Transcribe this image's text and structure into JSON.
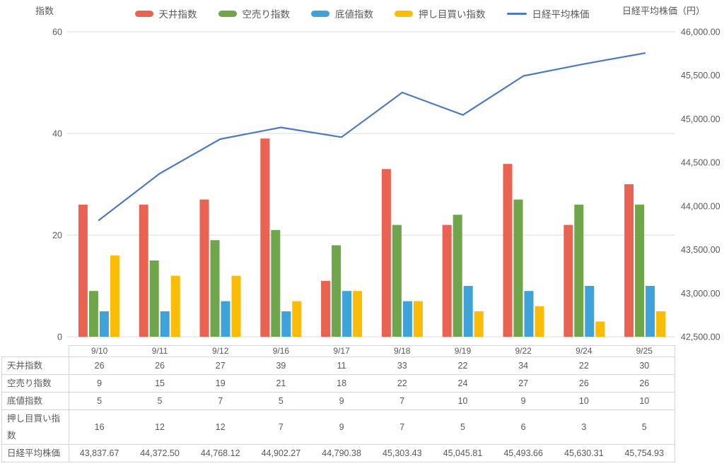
{
  "page": {
    "left_axis_title": "指数",
    "right_axis_title": "日経平均株価（円）"
  },
  "colors": {
    "ceiling": "#EA6352",
    "short_sell": "#70A64B",
    "bottom": "#3FA2D9",
    "dip_buy": "#FBBC05",
    "nikkei_line": "#4E79BD",
    "grid": "#DCDCDC",
    "table_border": "#D5D5D5",
    "text": "#595959"
  },
  "legend": {
    "items": [
      {
        "label": "天井指数",
        "color": "#EA6352",
        "marker": "bar"
      },
      {
        "label": "空売り指数",
        "color": "#70A64B",
        "marker": "bar"
      },
      {
        "label": "底値指数",
        "color": "#3FA2D9",
        "marker": "bar"
      },
      {
        "label": "押し目買い指数",
        "color": "#FBBC05",
        "marker": "bar"
      },
      {
        "label": "日経平均株価",
        "color": "#4E79BD",
        "marker": "line"
      }
    ]
  },
  "chart_data": {
    "type": "bar",
    "subtype": "combo-bar-line-dual-axis",
    "categories": [
      "9/10",
      "9/11",
      "9/12",
      "9/16",
      "9/17",
      "9/18",
      "9/19",
      "9/22",
      "9/24",
      "9/25"
    ],
    "series": [
      {
        "name": "天井指数",
        "type": "bar",
        "axis": "left",
        "color": "#EA6352",
        "values": [
          26,
          26,
          27,
          39,
          11,
          33,
          22,
          34,
          22,
          30
        ]
      },
      {
        "name": "空売り指数",
        "type": "bar",
        "axis": "left",
        "color": "#70A64B",
        "values": [
          9,
          15,
          19,
          21,
          18,
          22,
          24,
          27,
          26,
          26
        ]
      },
      {
        "name": "底値指数",
        "type": "bar",
        "axis": "left",
        "color": "#3FA2D9",
        "values": [
          5,
          5,
          7,
          5,
          9,
          7,
          10,
          9,
          10,
          10
        ]
      },
      {
        "name": "押し目買い指数",
        "type": "bar",
        "axis": "left",
        "color": "#FBBC05",
        "values": [
          16,
          12,
          12,
          7,
          9,
          7,
          5,
          6,
          3,
          5
        ]
      },
      {
        "name": "日経平均株価",
        "type": "line",
        "axis": "right",
        "color": "#4E79BD",
        "values": [
          43837.67,
          44372.5,
          44768.12,
          44902.27,
          44790.38,
          45303.43,
          45045.81,
          45493.66,
          45630.31,
          45754.93
        ]
      }
    ],
    "left_axis": {
      "title": "指数",
      "min": 0,
      "max": 60,
      "tick_values": [
        60,
        40,
        20,
        0
      ],
      "tick_labels": [
        "60",
        "40",
        "20",
        "0"
      ]
    },
    "right_axis": {
      "title": "日経平均株価（円）",
      "min": 42500,
      "max": 46000,
      "tick_values": [
        46000,
        45500,
        45000,
        44500,
        44000,
        43500,
        43000,
        42500
      ],
      "tick_labels": [
        "46,000.00",
        "45,500.00",
        "45,000.00",
        "44,500.00",
        "44,000.00",
        "43,500.00",
        "43,000.00",
        "42,500.00"
      ]
    },
    "grid": "horizontal-left-major",
    "legend_position": "top-center",
    "title": ""
  },
  "table": {
    "corner": "",
    "columns": [
      "9/10",
      "9/11",
      "9/12",
      "9/16",
      "9/17",
      "9/18",
      "9/19",
      "9/22",
      "9/24",
      "9/25"
    ],
    "rows": [
      {
        "label": "天井指数",
        "values": [
          "26",
          "26",
          "27",
          "39",
          "11",
          "33",
          "22",
          "34",
          "22",
          "30"
        ]
      },
      {
        "label": "空売り指数",
        "values": [
          "9",
          "15",
          "19",
          "21",
          "18",
          "22",
          "24",
          "27",
          "26",
          "26"
        ]
      },
      {
        "label": "底値指数",
        "values": [
          "5",
          "5",
          "7",
          "5",
          "9",
          "7",
          "10",
          "9",
          "10",
          "10"
        ]
      },
      {
        "label": "押し目買い指数",
        "values": [
          "16",
          "12",
          "12",
          "7",
          "9",
          "7",
          "5",
          "6",
          "3",
          "5"
        ]
      },
      {
        "label": "日経平均株価",
        "values": [
          "43,837.67",
          "44,372.50",
          "44,768.12",
          "44,902.27",
          "44,790.38",
          "45,303.43",
          "45,045.81",
          "45,493.66",
          "45,630.31",
          "45,754.93"
        ]
      }
    ]
  }
}
